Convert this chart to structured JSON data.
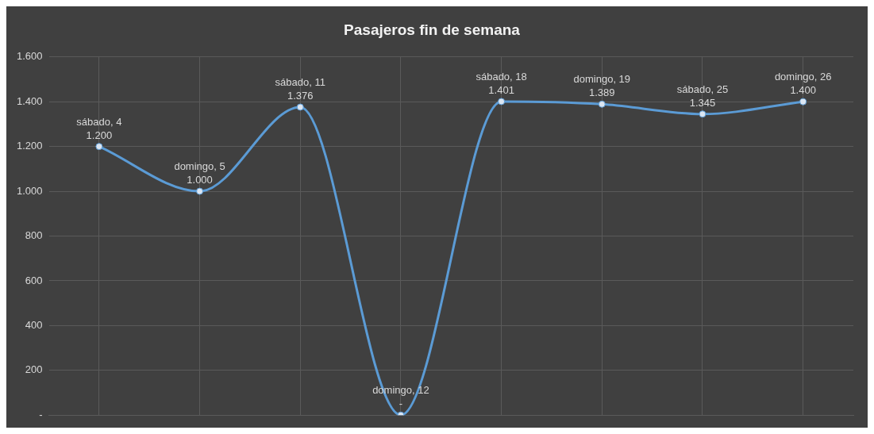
{
  "chart_data": {
    "type": "line",
    "title": "Pasajeros fin de semana",
    "categories": [
      "sábado, 4",
      "domingo, 5",
      "sábado, 11",
      "domingo, 12",
      "sábado, 18",
      "domingo, 19",
      "sábado, 25",
      "domingo, 26"
    ],
    "series": [
      {
        "color": "#5b9bd5",
        "values": [
          1200,
          1000,
          1376,
          0,
          1401,
          1389,
          1345,
          1400
        ],
        "value_labels": [
          "1.200",
          "1.000",
          "1.376",
          "-",
          "1.401",
          "1.389",
          "1.345",
          "1.400"
        ]
      }
    ],
    "ylim": [
      0,
      1600
    ],
    "yticks": [
      {
        "value": 0,
        "label": "-"
      },
      {
        "value": 200,
        "label": "200"
      },
      {
        "value": 400,
        "label": "400"
      },
      {
        "value": 600,
        "label": "600"
      },
      {
        "value": 800,
        "label": "800"
      },
      {
        "value": 1000,
        "label": "1.000"
      },
      {
        "value": 1200,
        "label": "1.200"
      },
      {
        "value": 1400,
        "label": "1.400"
      },
      {
        "value": 1600,
        "label": "1.600"
      }
    ],
    "tick_labels": "y",
    "grid": true,
    "legend": false,
    "marker": "circle",
    "line_style": "solid"
  }
}
